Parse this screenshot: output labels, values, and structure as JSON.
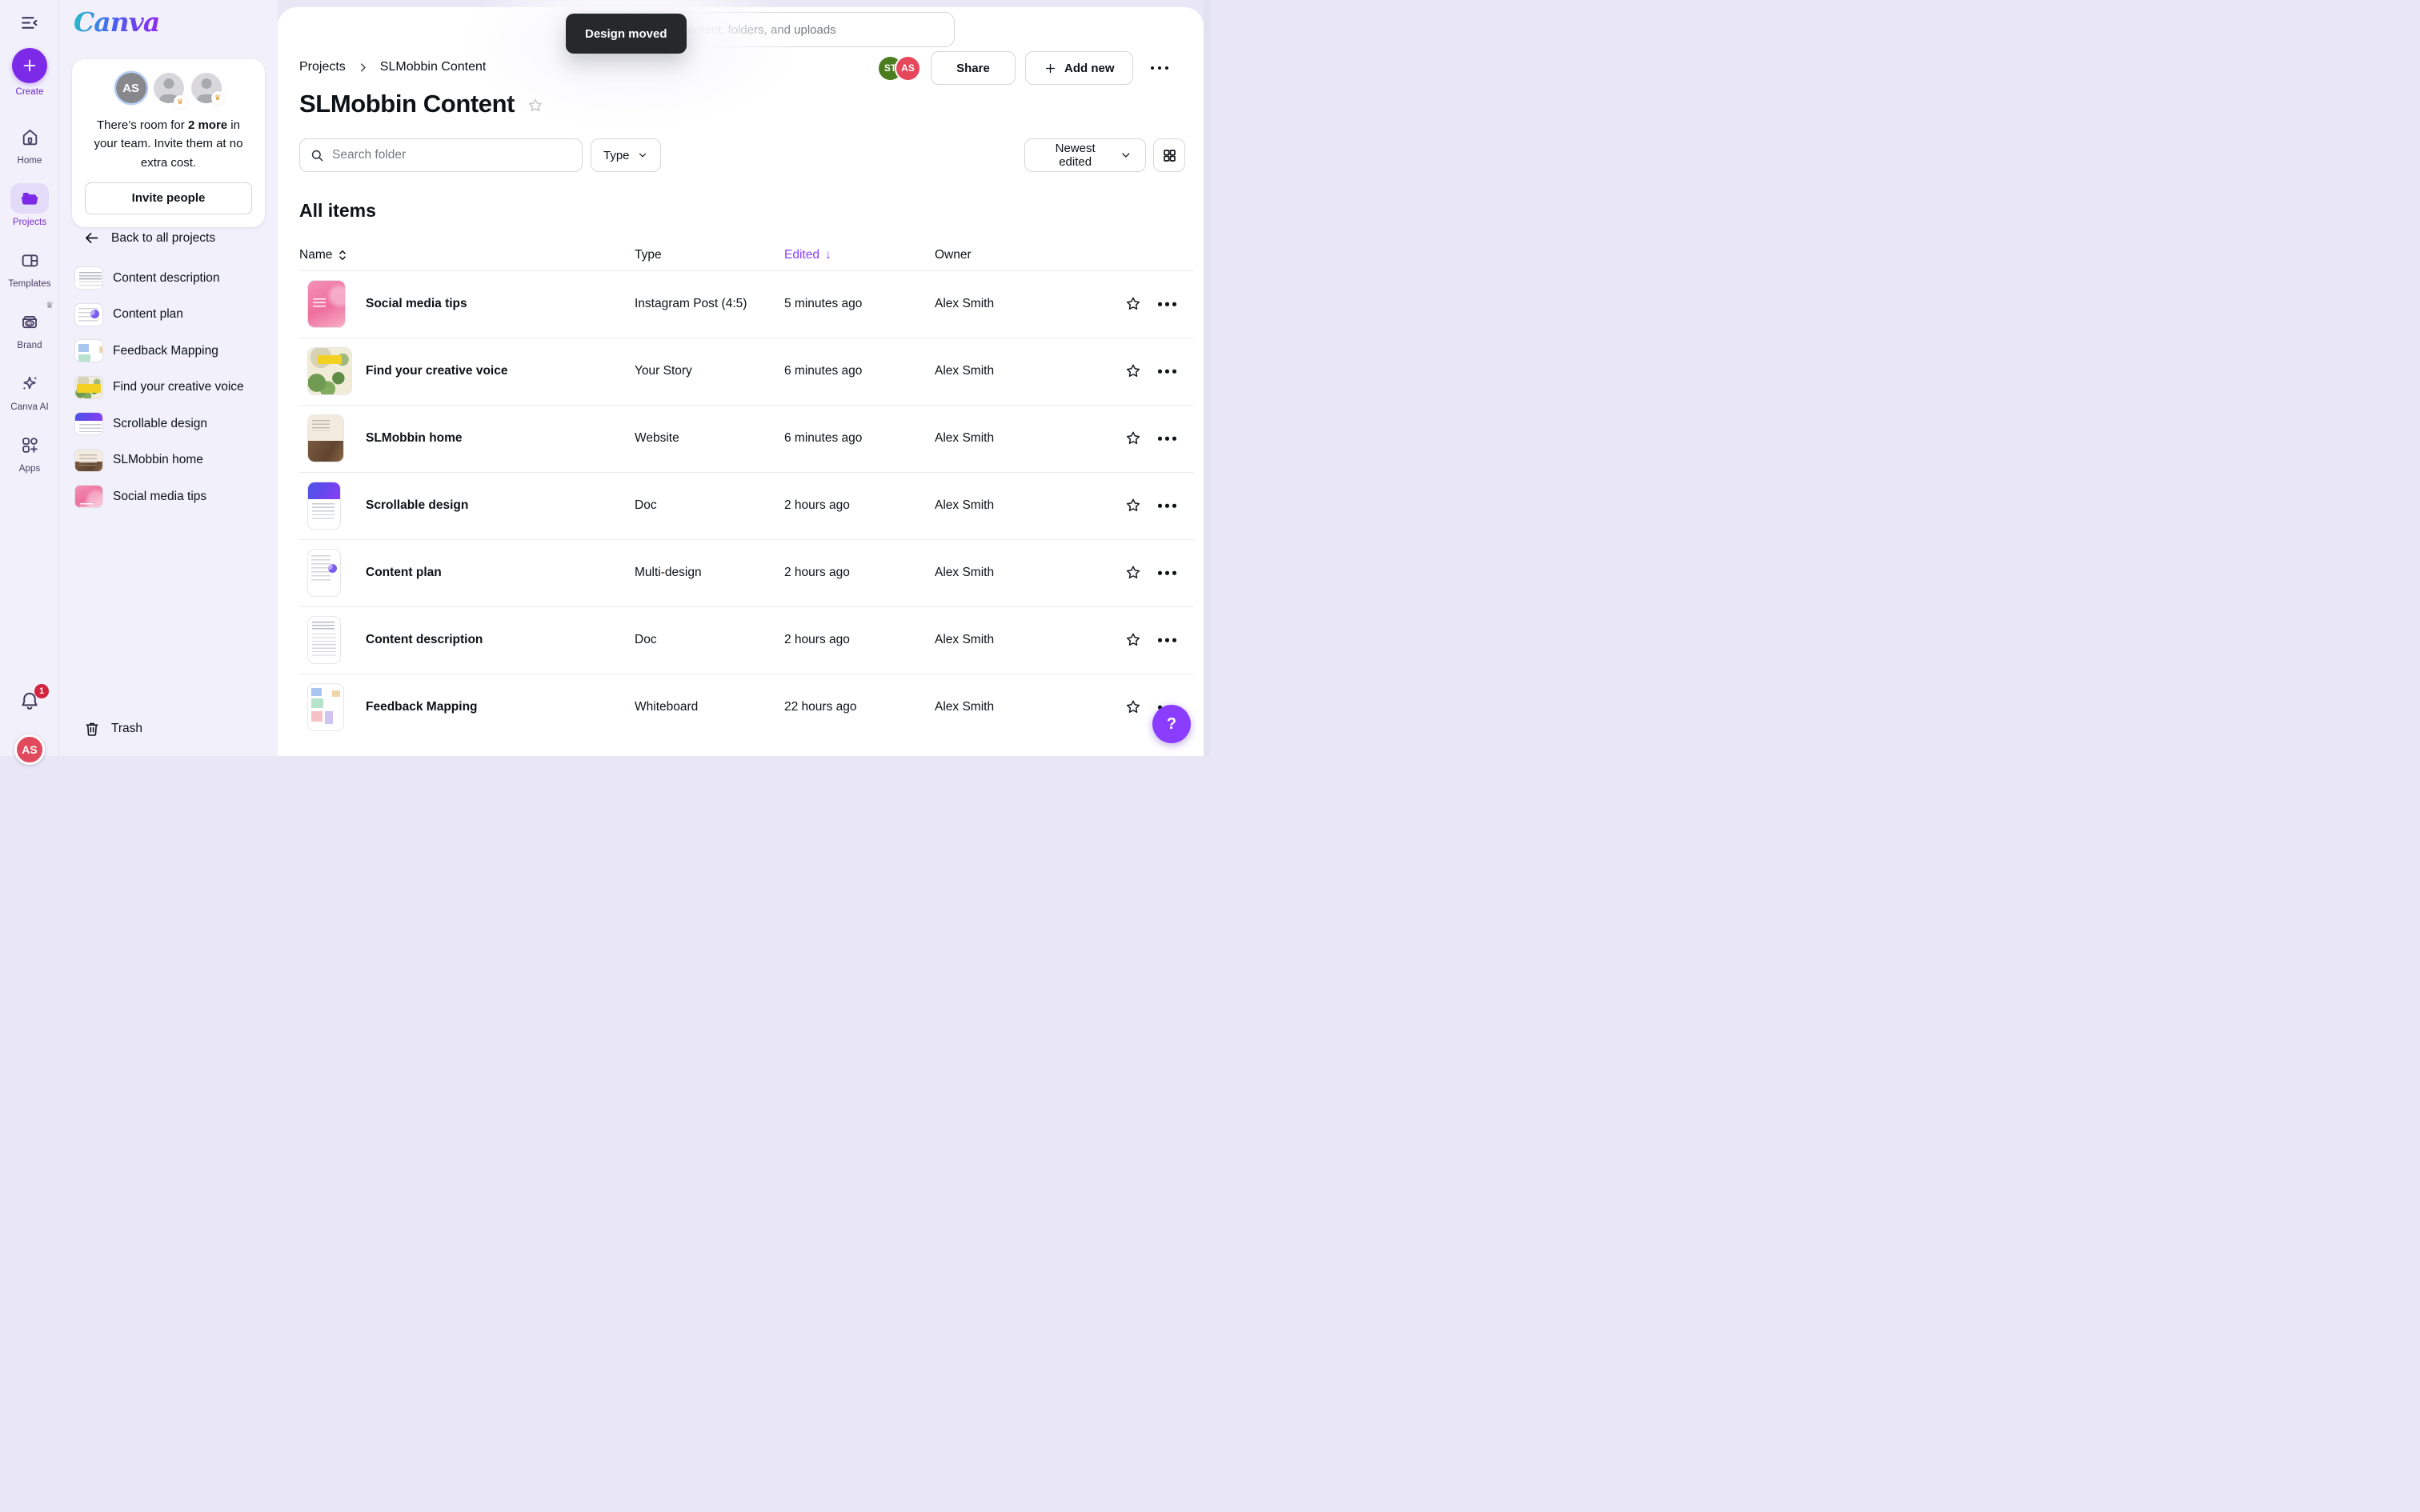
{
  "app": {
    "logo_text": "Canva"
  },
  "nav_rail": {
    "items": [
      {
        "id": "create",
        "label": "Create"
      },
      {
        "id": "home",
        "label": "Home"
      },
      {
        "id": "projects",
        "label": "Projects",
        "active": true
      },
      {
        "id": "templates",
        "label": "Templates"
      },
      {
        "id": "brand",
        "label": "Brand",
        "crown": "♛"
      },
      {
        "id": "canva-ai",
        "label": "Canva AI"
      },
      {
        "id": "apps",
        "label": "Apps"
      }
    ],
    "notification_count": "1",
    "user_initials": "AS"
  },
  "sidebar": {
    "team_panel": {
      "avatar_initials": "AS",
      "message_prefix": "There’s room for ",
      "message_bold": "2 more",
      "message_suffix": " in your team. Invite them at no extra cost.",
      "invite_button": "Invite people"
    },
    "back_link": "Back to all projects",
    "folders": [
      {
        "label": "Content description",
        "thumb": "description"
      },
      {
        "label": "Content plan",
        "thumb": "plan"
      },
      {
        "label": "Feedback Mapping",
        "thumb": "feedback"
      },
      {
        "label": "Find your creative voice",
        "thumb": "creative"
      },
      {
        "label": "Scrollable design",
        "thumb": "scrollable"
      },
      {
        "label": "SLMobbin home",
        "thumb": "home"
      },
      {
        "label": "Social media tips",
        "thumb": "social"
      }
    ],
    "trash_label": "Trash"
  },
  "header": {
    "toast": "Design moved",
    "search_placeholder": "Search your content, folders, and uploads",
    "breadcrumb_root": "Projects",
    "breadcrumb_current": "SLMobbin Content",
    "avatars": [
      {
        "initials": "ST",
        "color": "#4c7c20"
      },
      {
        "initials": "AS",
        "color": "#e6475a"
      }
    ],
    "share_button": "Share",
    "add_new_button": "Add new",
    "title": "SLMobbin Content"
  },
  "toolbar": {
    "search_placeholder": "Search folder",
    "type_filter": "Type",
    "sort": "Newest edited"
  },
  "content": {
    "section_title": "All items",
    "columns": {
      "name": "Name",
      "type": "Type",
      "edited": "Edited",
      "owner": "Owner"
    },
    "sort_arrow": "↓",
    "rows": [
      {
        "name": "Social media tips",
        "type": "Instagram Post (4:5)",
        "edited": "5 minutes ago",
        "owner": "Alex Smith",
        "thumb": "social"
      },
      {
        "name": "Find your creative voice",
        "type": "Your Story",
        "edited": "6 minutes ago",
        "owner": "Alex Smith",
        "thumb": "creative"
      },
      {
        "name": "SLMobbin home",
        "type": "Website",
        "edited": "6 minutes ago",
        "owner": "Alex Smith",
        "thumb": "home"
      },
      {
        "name": "Scrollable design",
        "type": "Doc",
        "edited": "2 hours ago",
        "owner": "Alex Smith",
        "thumb": "scrollable"
      },
      {
        "name": "Content plan",
        "type": "Multi-design",
        "edited": "2 hours ago",
        "owner": "Alex Smith",
        "thumb": "plan"
      },
      {
        "name": "Content description",
        "type": "Doc",
        "edited": "2 hours ago",
        "owner": "Alex Smith",
        "thumb": "description"
      },
      {
        "name": "Feedback Mapping",
        "type": "Whiteboard",
        "edited": "22 hours ago",
        "owner": "Alex Smith",
        "thumb": "feedback"
      }
    ]
  },
  "help_button": "?",
  "colors": {
    "accent_purple": "#8b3dff",
    "create_purple": "#7d2ae8",
    "toast_bg": "#26282c",
    "badge_red": "#d2243f",
    "rail_bg": "#f2f0fb"
  }
}
